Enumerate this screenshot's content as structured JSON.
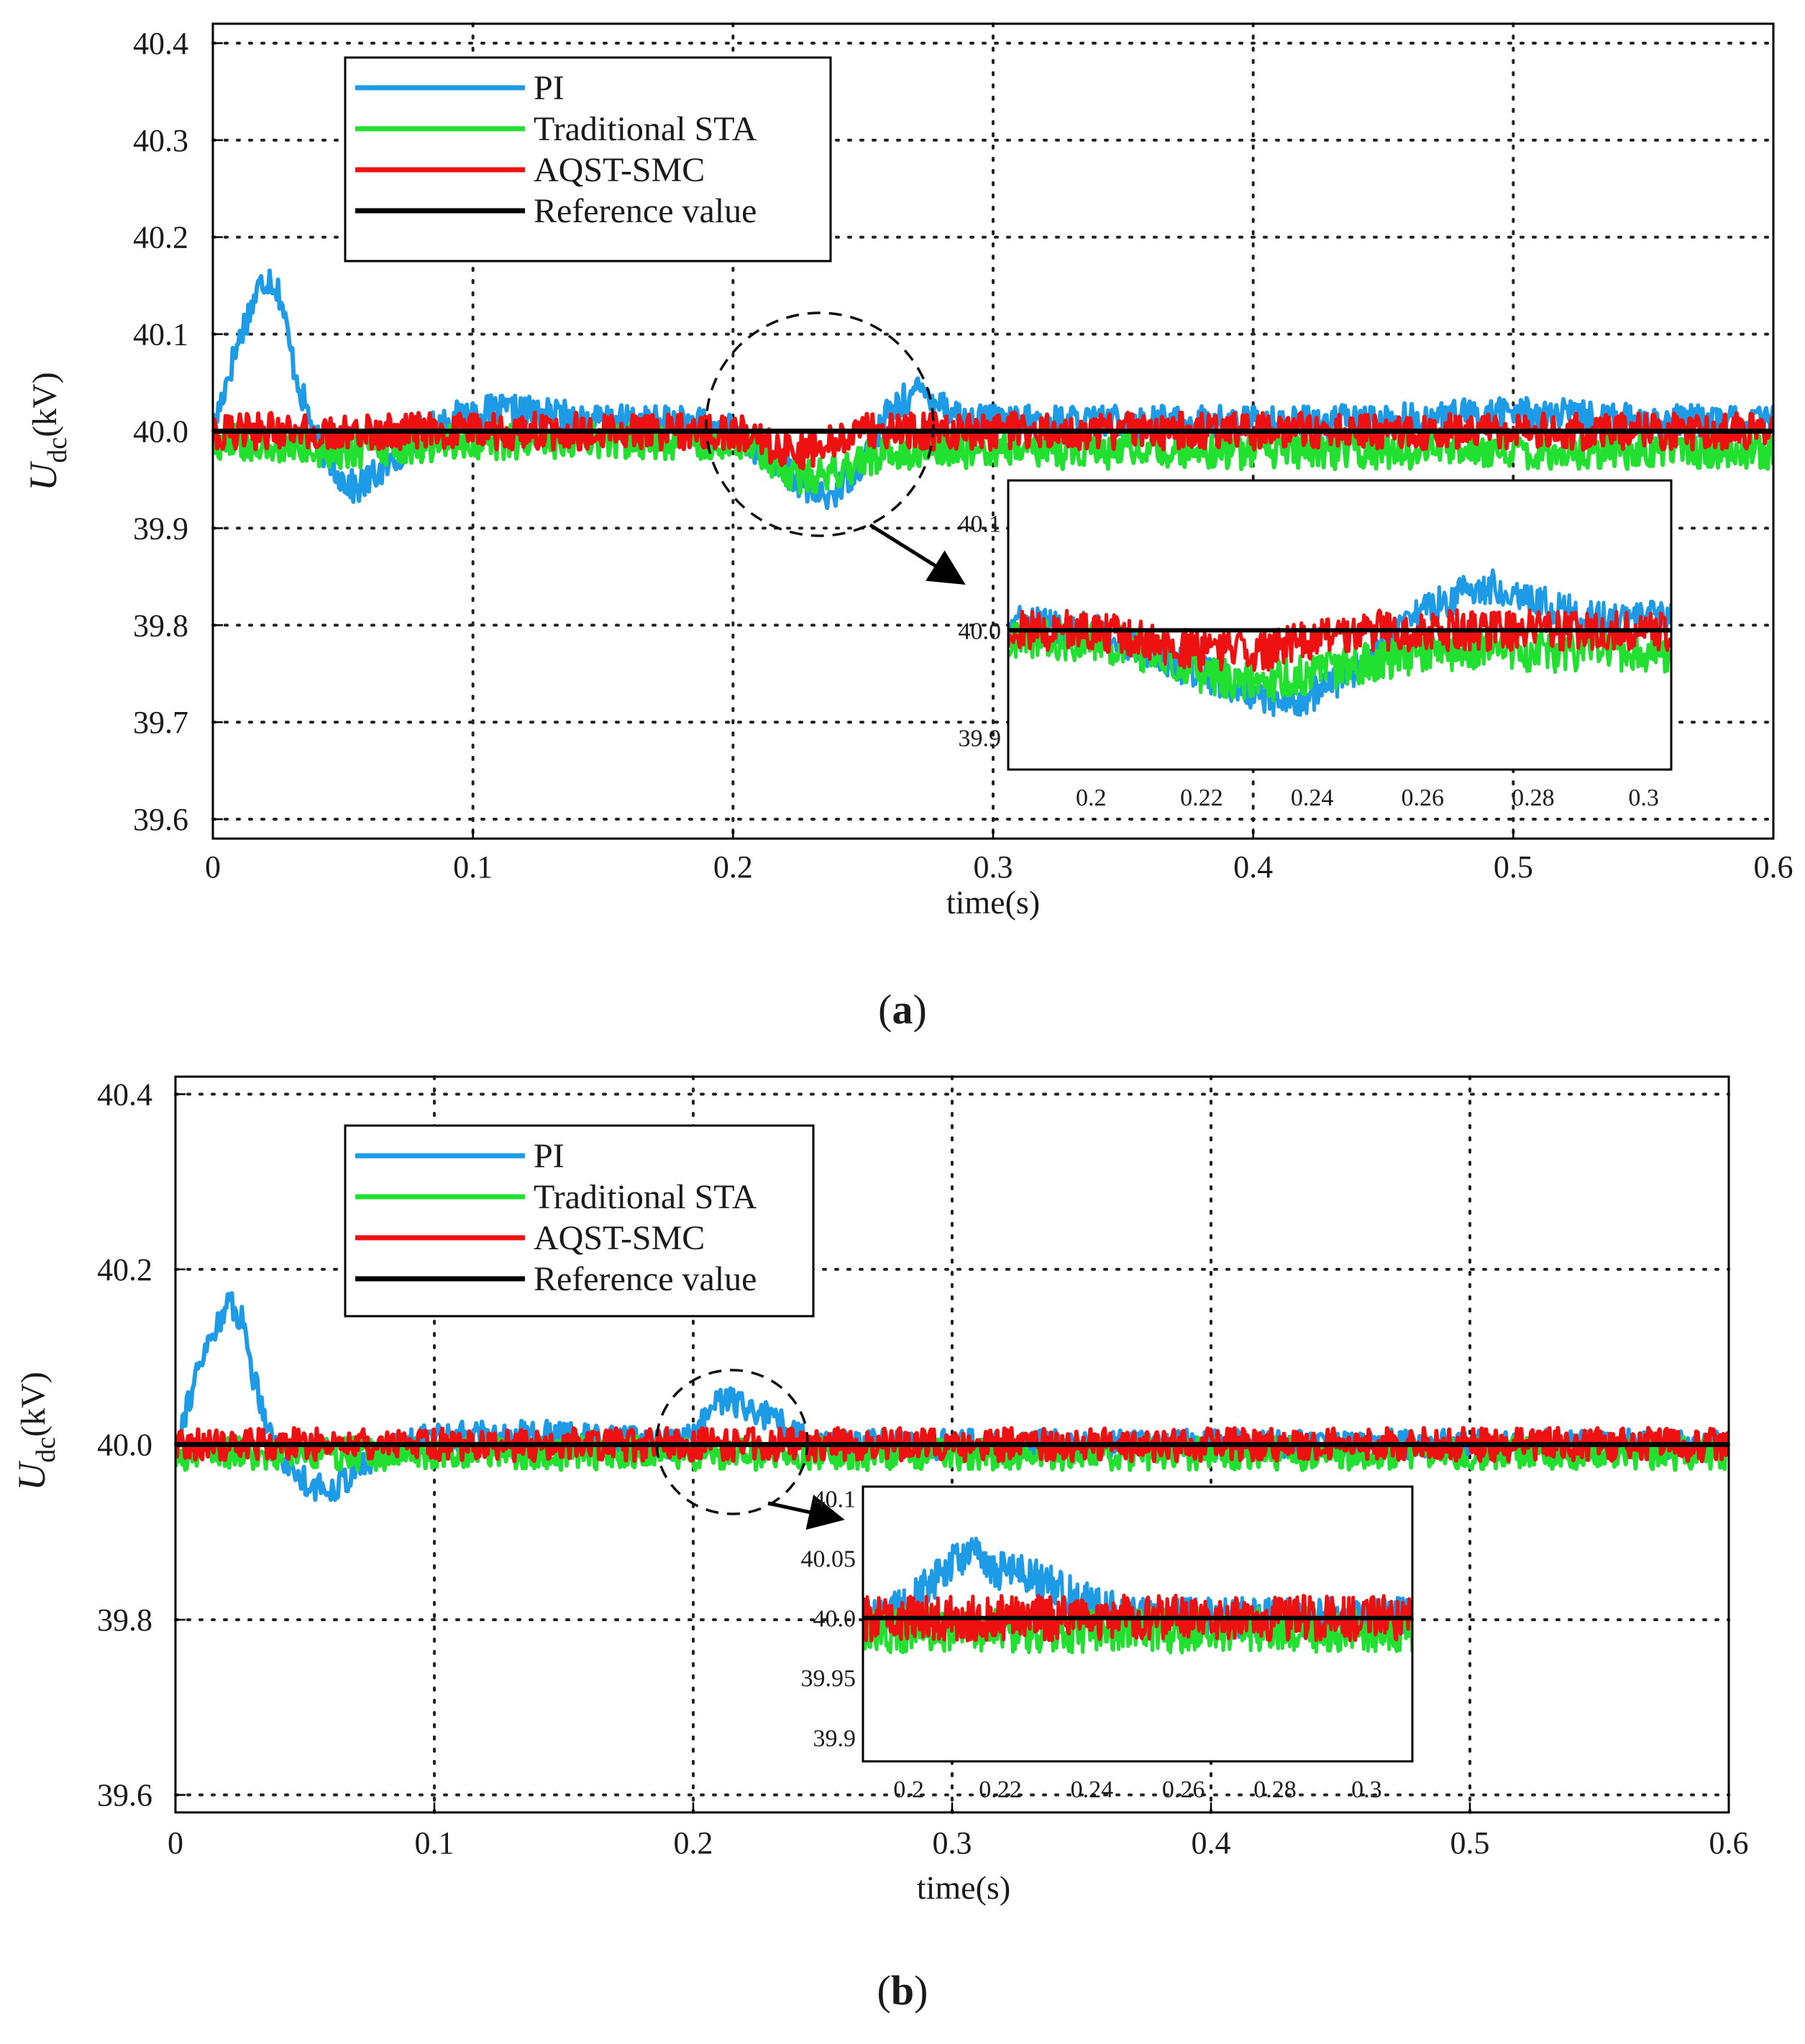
{
  "figure": {
    "caption_a": "a",
    "caption_b": "b",
    "ylabel_main": "U",
    "ylabel_sub": "dc",
    "ylabel_unit": "(kV)",
    "xlabel": "time(s)"
  },
  "legend": {
    "entries": [
      "PI",
      "Traditional STA",
      "AQST-SMC",
      "Reference value"
    ]
  },
  "colors": {
    "PI": "#1e9be6",
    "Traditional STA": "#22e030",
    "AQST-SMC": "#ee1111",
    "Reference value": "#000000"
  },
  "chart_data": [
    {
      "type": "line",
      "panel": "a",
      "title": "",
      "xlabel": "time(s)",
      "ylabel": "Udc(kV)",
      "xlim": [
        0,
        0.6
      ],
      "ylim": [
        39.58,
        40.42
      ],
      "xticks": [
        0,
        0.1,
        0.2,
        0.3,
        0.4,
        0.5,
        0.6
      ],
      "xtick_labels": [
        "0",
        "0.1",
        "0.2",
        "0.3",
        "0.4",
        "0.5",
        "0.6"
      ],
      "yticks": [
        39.6,
        39.7,
        39.8,
        39.9,
        40.0,
        40.1,
        40.2,
        40.3,
        40.4
      ],
      "ytick_labels": [
        "39.6",
        "39.7",
        "39.8",
        "39.9",
        "40.0",
        "40.1",
        "40.2",
        "40.3",
        "40.4"
      ],
      "grid": true,
      "legend_position": "top-left",
      "series": [
        {
          "name": "PI",
          "x": [
            0,
            0.005,
            0.012,
            0.018,
            0.022,
            0.026,
            0.03,
            0.035,
            0.04,
            0.045,
            0.05,
            0.055,
            0.06,
            0.065,
            0.07,
            0.075,
            0.08,
            0.09,
            0.1,
            0.12,
            0.15,
            0.18,
            0.2,
            0.21,
            0.22,
            0.23,
            0.235,
            0.24,
            0.25,
            0.26,
            0.27,
            0.275,
            0.28,
            0.29,
            0.3,
            0.35,
            0.4,
            0.45,
            0.5,
            0.55,
            0.6
          ],
          "values": [
            40.0,
            40.05,
            40.11,
            40.15,
            40.16,
            40.14,
            40.08,
            40.03,
            39.99,
            39.97,
            39.95,
            39.94,
            39.95,
            39.96,
            39.97,
            39.99,
            40.0,
            40.01,
            40.02,
            40.02,
            40.01,
            40.01,
            40.0,
            39.98,
            39.96,
            39.94,
            39.93,
            39.94,
            39.97,
            40.02,
            40.04,
            40.04,
            40.03,
            40.01,
            40.01,
            40.01,
            40.01,
            40.01,
            40.02,
            40.01,
            40.01
          ]
        },
        {
          "name": "Traditional STA",
          "x": [
            0,
            0.05,
            0.1,
            0.15,
            0.2,
            0.21,
            0.22,
            0.23,
            0.24,
            0.25,
            0.26,
            0.27,
            0.28,
            0.3,
            0.35,
            0.4,
            0.45,
            0.5,
            0.55,
            0.6
          ],
          "values": [
            39.99,
            39.98,
            39.99,
            39.99,
            39.99,
            39.98,
            39.96,
            39.95,
            39.96,
            39.97,
            39.98,
            39.98,
            39.98,
            39.98,
            39.98,
            39.98,
            39.98,
            39.98,
            39.98,
            39.98
          ]
        },
        {
          "name": "AQST-SMC",
          "x": [
            0,
            0.05,
            0.1,
            0.15,
            0.2,
            0.21,
            0.22,
            0.23,
            0.24,
            0.25,
            0.26,
            0.3,
            0.35,
            0.4,
            0.45,
            0.5,
            0.55,
            0.6
          ],
          "values": [
            40.0,
            40.0,
            40.0,
            40.0,
            40.0,
            39.99,
            39.98,
            39.98,
            39.99,
            40.0,
            40.0,
            40.0,
            40.0,
            40.0,
            40.0,
            40.0,
            40.0,
            40.0
          ]
        },
        {
          "name": "Reference value",
          "x": [
            0,
            0.6
          ],
          "values": [
            40.0,
            40.0
          ]
        }
      ],
      "inset": {
        "xlim": [
          0.185,
          0.305
        ],
        "ylim": [
          39.87,
          40.14
        ],
        "xtick_labels": [
          "0.2",
          "0.22",
          "0.24",
          "0.26",
          "0.28",
          "0.3"
        ],
        "ytick_labels": [
          "39.9",
          "40.0",
          "40.1"
        ]
      }
    },
    {
      "type": "line",
      "panel": "b",
      "title": "",
      "xlabel": "time(s)",
      "ylabel": "Udc(kV)",
      "xlim": [
        0,
        0.6
      ],
      "ylim": [
        39.58,
        40.42
      ],
      "xticks": [
        0,
        0.1,
        0.2,
        0.3,
        0.4,
        0.5,
        0.6
      ],
      "xtick_labels": [
        "0",
        "0.1",
        "0.2",
        "0.3",
        "0.4",
        "0.5",
        "0.6"
      ],
      "yticks": [
        39.6,
        39.8,
        40.0,
        40.2,
        40.4
      ],
      "ytick_labels": [
        "39.6",
        "39.8",
        "40.0",
        "40.2",
        "40.4"
      ],
      "grid": true,
      "legend_position": "top-left",
      "series": [
        {
          "name": "PI",
          "x": [
            0,
            0.005,
            0.012,
            0.018,
            0.022,
            0.026,
            0.03,
            0.035,
            0.04,
            0.045,
            0.05,
            0.055,
            0.06,
            0.065,
            0.07,
            0.075,
            0.08,
            0.09,
            0.1,
            0.15,
            0.19,
            0.2,
            0.205,
            0.21,
            0.215,
            0.22,
            0.23,
            0.235,
            0.24,
            0.25,
            0.3,
            0.4,
            0.5,
            0.6
          ],
          "values": [
            40.0,
            40.05,
            40.11,
            40.15,
            40.16,
            40.14,
            40.08,
            40.03,
            39.99,
            39.97,
            39.96,
            39.95,
            39.95,
            39.96,
            39.97,
            39.98,
            39.99,
            40.0,
            40.01,
            40.01,
            40.0,
            40.01,
            40.03,
            40.05,
            40.05,
            40.04,
            40.03,
            40.02,
            40.01,
            40.0,
            40.0,
            40.0,
            40.0,
            40.0
          ]
        },
        {
          "name": "Traditional STA",
          "x": [
            0,
            0.1,
            0.2,
            0.3,
            0.4,
            0.5,
            0.6
          ],
          "values": [
            39.99,
            39.99,
            39.99,
            39.99,
            39.99,
            39.99,
            39.99
          ]
        },
        {
          "name": "AQST-SMC",
          "x": [
            0,
            0.1,
            0.2,
            0.3,
            0.4,
            0.5,
            0.6
          ],
          "values": [
            40.0,
            40.0,
            40.0,
            40.0,
            40.0,
            40.0,
            40.0
          ]
        },
        {
          "name": "Reference value",
          "x": [
            0,
            0.6
          ],
          "values": [
            40.0,
            40.0
          ]
        }
      ],
      "inset": {
        "xlim": [
          0.19,
          0.31
        ],
        "ylim": [
          39.88,
          40.11
        ],
        "xtick_labels": [
          "0.2",
          "0.22",
          "0.24",
          "0.26",
          "0.28",
          "0.3"
        ],
        "ytick_labels": [
          "39.9",
          "39.95",
          "40.0",
          "40.05",
          "40.1"
        ]
      }
    }
  ]
}
